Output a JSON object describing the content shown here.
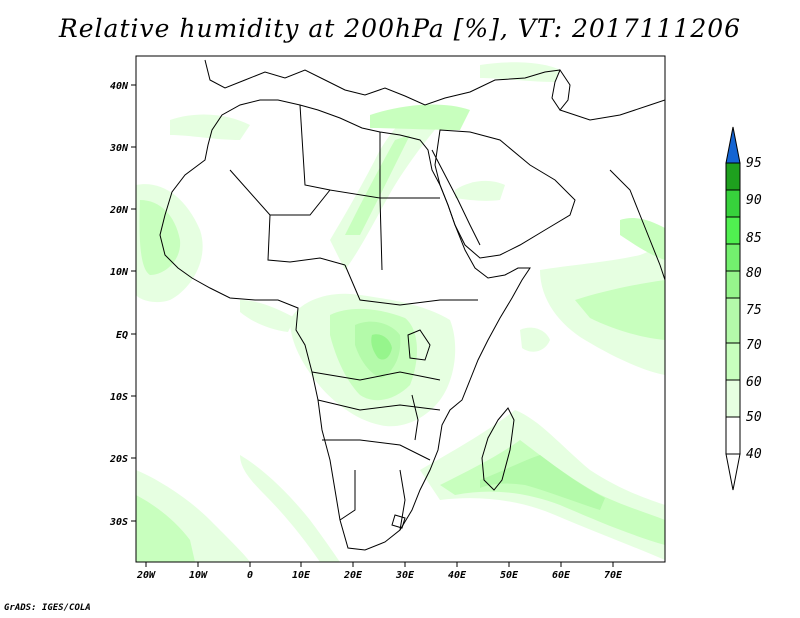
{
  "title": "Relative humidity at 200hPa [%], VT: 2017111206",
  "credit": "GrADS: IGES/COLA",
  "axes": {
    "lat_labels": [
      "40N",
      "30N",
      "20N",
      "10N",
      "EQ",
      "10S",
      "20S",
      "30S"
    ],
    "lon_labels": [
      "20W",
      "10W",
      "0",
      "10E",
      "20E",
      "30E",
      "40E",
      "50E",
      "60E",
      "70E"
    ]
  },
  "colorbar": {
    "levels": [
      "95",
      "90",
      "85",
      "80",
      "75",
      "70",
      "60",
      "50",
      "40"
    ],
    "colors": [
      "#1464d2",
      "#1ea01e",
      "#37d23c",
      "#50f050",
      "#73f06e",
      "#96f58c",
      "#b4faaa",
      "#c8ffbe",
      "#e6ffe1",
      "#ffffff"
    ]
  }
}
